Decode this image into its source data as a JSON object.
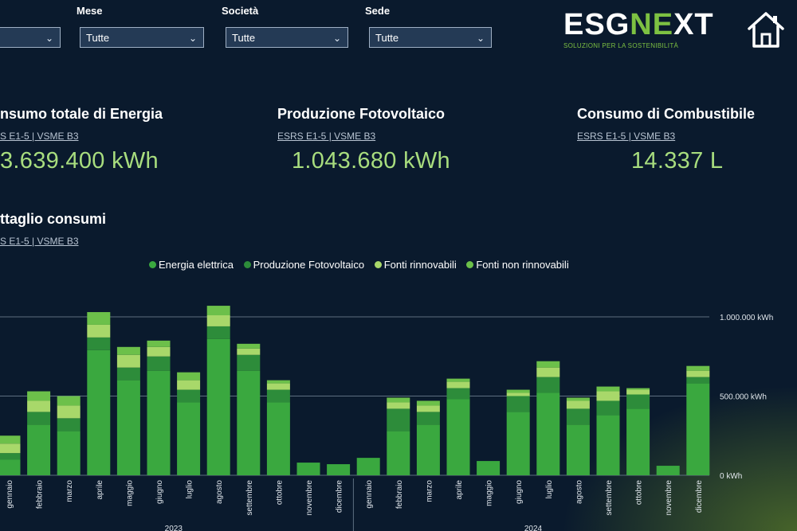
{
  "filters": [
    {
      "label": "",
      "value": ""
    },
    {
      "label": "Mese",
      "value": "Tutte"
    },
    {
      "label": "Società",
      "value": "Tutte"
    },
    {
      "label": "Sede",
      "value": "Tutte"
    }
  ],
  "logo": {
    "part1": "ESG",
    "part2": "N",
    "part3": "E",
    "part4": "XT",
    "tagline": "SOLUZIONI PER LA SOSTENIBILITÀ"
  },
  "kpis": [
    {
      "title": "nsumo totale di Energia",
      "sub": "S E1-5 | VSME B3",
      "value": "3.639.400 kWh"
    },
    {
      "title": "Produzione Fotovoltaico",
      "sub": "ESRS E1-5 | VSME B3",
      "value": "1.043.680 kWh"
    },
    {
      "title": "Consumo di Combustibile",
      "sub": "ESRS E1-5 | VSME B3",
      "value": "14.337 L"
    }
  ],
  "detail": {
    "title": "ttaglio consumi",
    "sub": "S E1-5 | VSME B3"
  },
  "colors": {
    "energia_elettrica": "#3aa83f",
    "produzione_fotovoltaico": "#2d8c3a",
    "fonti_rinnovabili": "#a8d86a",
    "fonti_non_rinnovabili": "#6cc04a",
    "kpi_value": "#a8dd7e",
    "background": "#0a1a2d"
  },
  "chart_data": {
    "type": "bar",
    "stacked": true,
    "legend_position": "top",
    "grid": true,
    "ylim": [
      0,
      1000000
    ],
    "ytick_labels": [
      "1.000.000 kWh",
      "500.000 kWh",
      "0 kWh"
    ],
    "ytick_values": [
      1000000,
      500000,
      0
    ],
    "year_labels": [
      "2023",
      "2024"
    ],
    "categories": [
      "gennaio",
      "febbraio",
      "marzo",
      "aprile",
      "maggio",
      "giugno",
      "luglio",
      "agosto",
      "settembre",
      "ottobre",
      "novembre",
      "dicembre",
      "gennaio",
      "febbraio",
      "marzo",
      "aprile",
      "maggio",
      "giugno",
      "luglio",
      "agosto",
      "settembre",
      "ottobre",
      "novembre",
      "dicembre"
    ],
    "series": [
      {
        "name": "Energia elettrica",
        "values": [
          100000,
          320000,
          280000,
          790000,
          600000,
          660000,
          460000,
          860000,
          660000,
          460000,
          80000,
          70000,
          110000,
          280000,
          320000,
          480000,
          90000,
          400000,
          520000,
          320000,
          380000,
          420000,
          60000,
          580000
        ]
      },
      {
        "name": "Produzione Fotovoltaico",
        "values": [
          40000,
          80000,
          80000,
          80000,
          80000,
          90000,
          80000,
          80000,
          100000,
          80000,
          0,
          0,
          0,
          140000,
          80000,
          70000,
          0,
          100000,
          100000,
          100000,
          90000,
          90000,
          0,
          40000
        ]
      },
      {
        "name": "Fonti rinnovabili",
        "values": [
          60000,
          70000,
          80000,
          80000,
          80000,
          60000,
          60000,
          70000,
          40000,
          40000,
          0,
          0,
          0,
          40000,
          40000,
          40000,
          0,
          20000,
          60000,
          50000,
          60000,
          30000,
          0,
          40000
        ]
      },
      {
        "name": "Fonti non rinnovabili",
        "values": [
          50000,
          60000,
          60000,
          80000,
          50000,
          40000,
          50000,
          60000,
          30000,
          20000,
          0,
          0,
          0,
          30000,
          30000,
          20000,
          0,
          20000,
          40000,
          20000,
          30000,
          10000,
          0,
          30000
        ]
      }
    ]
  }
}
